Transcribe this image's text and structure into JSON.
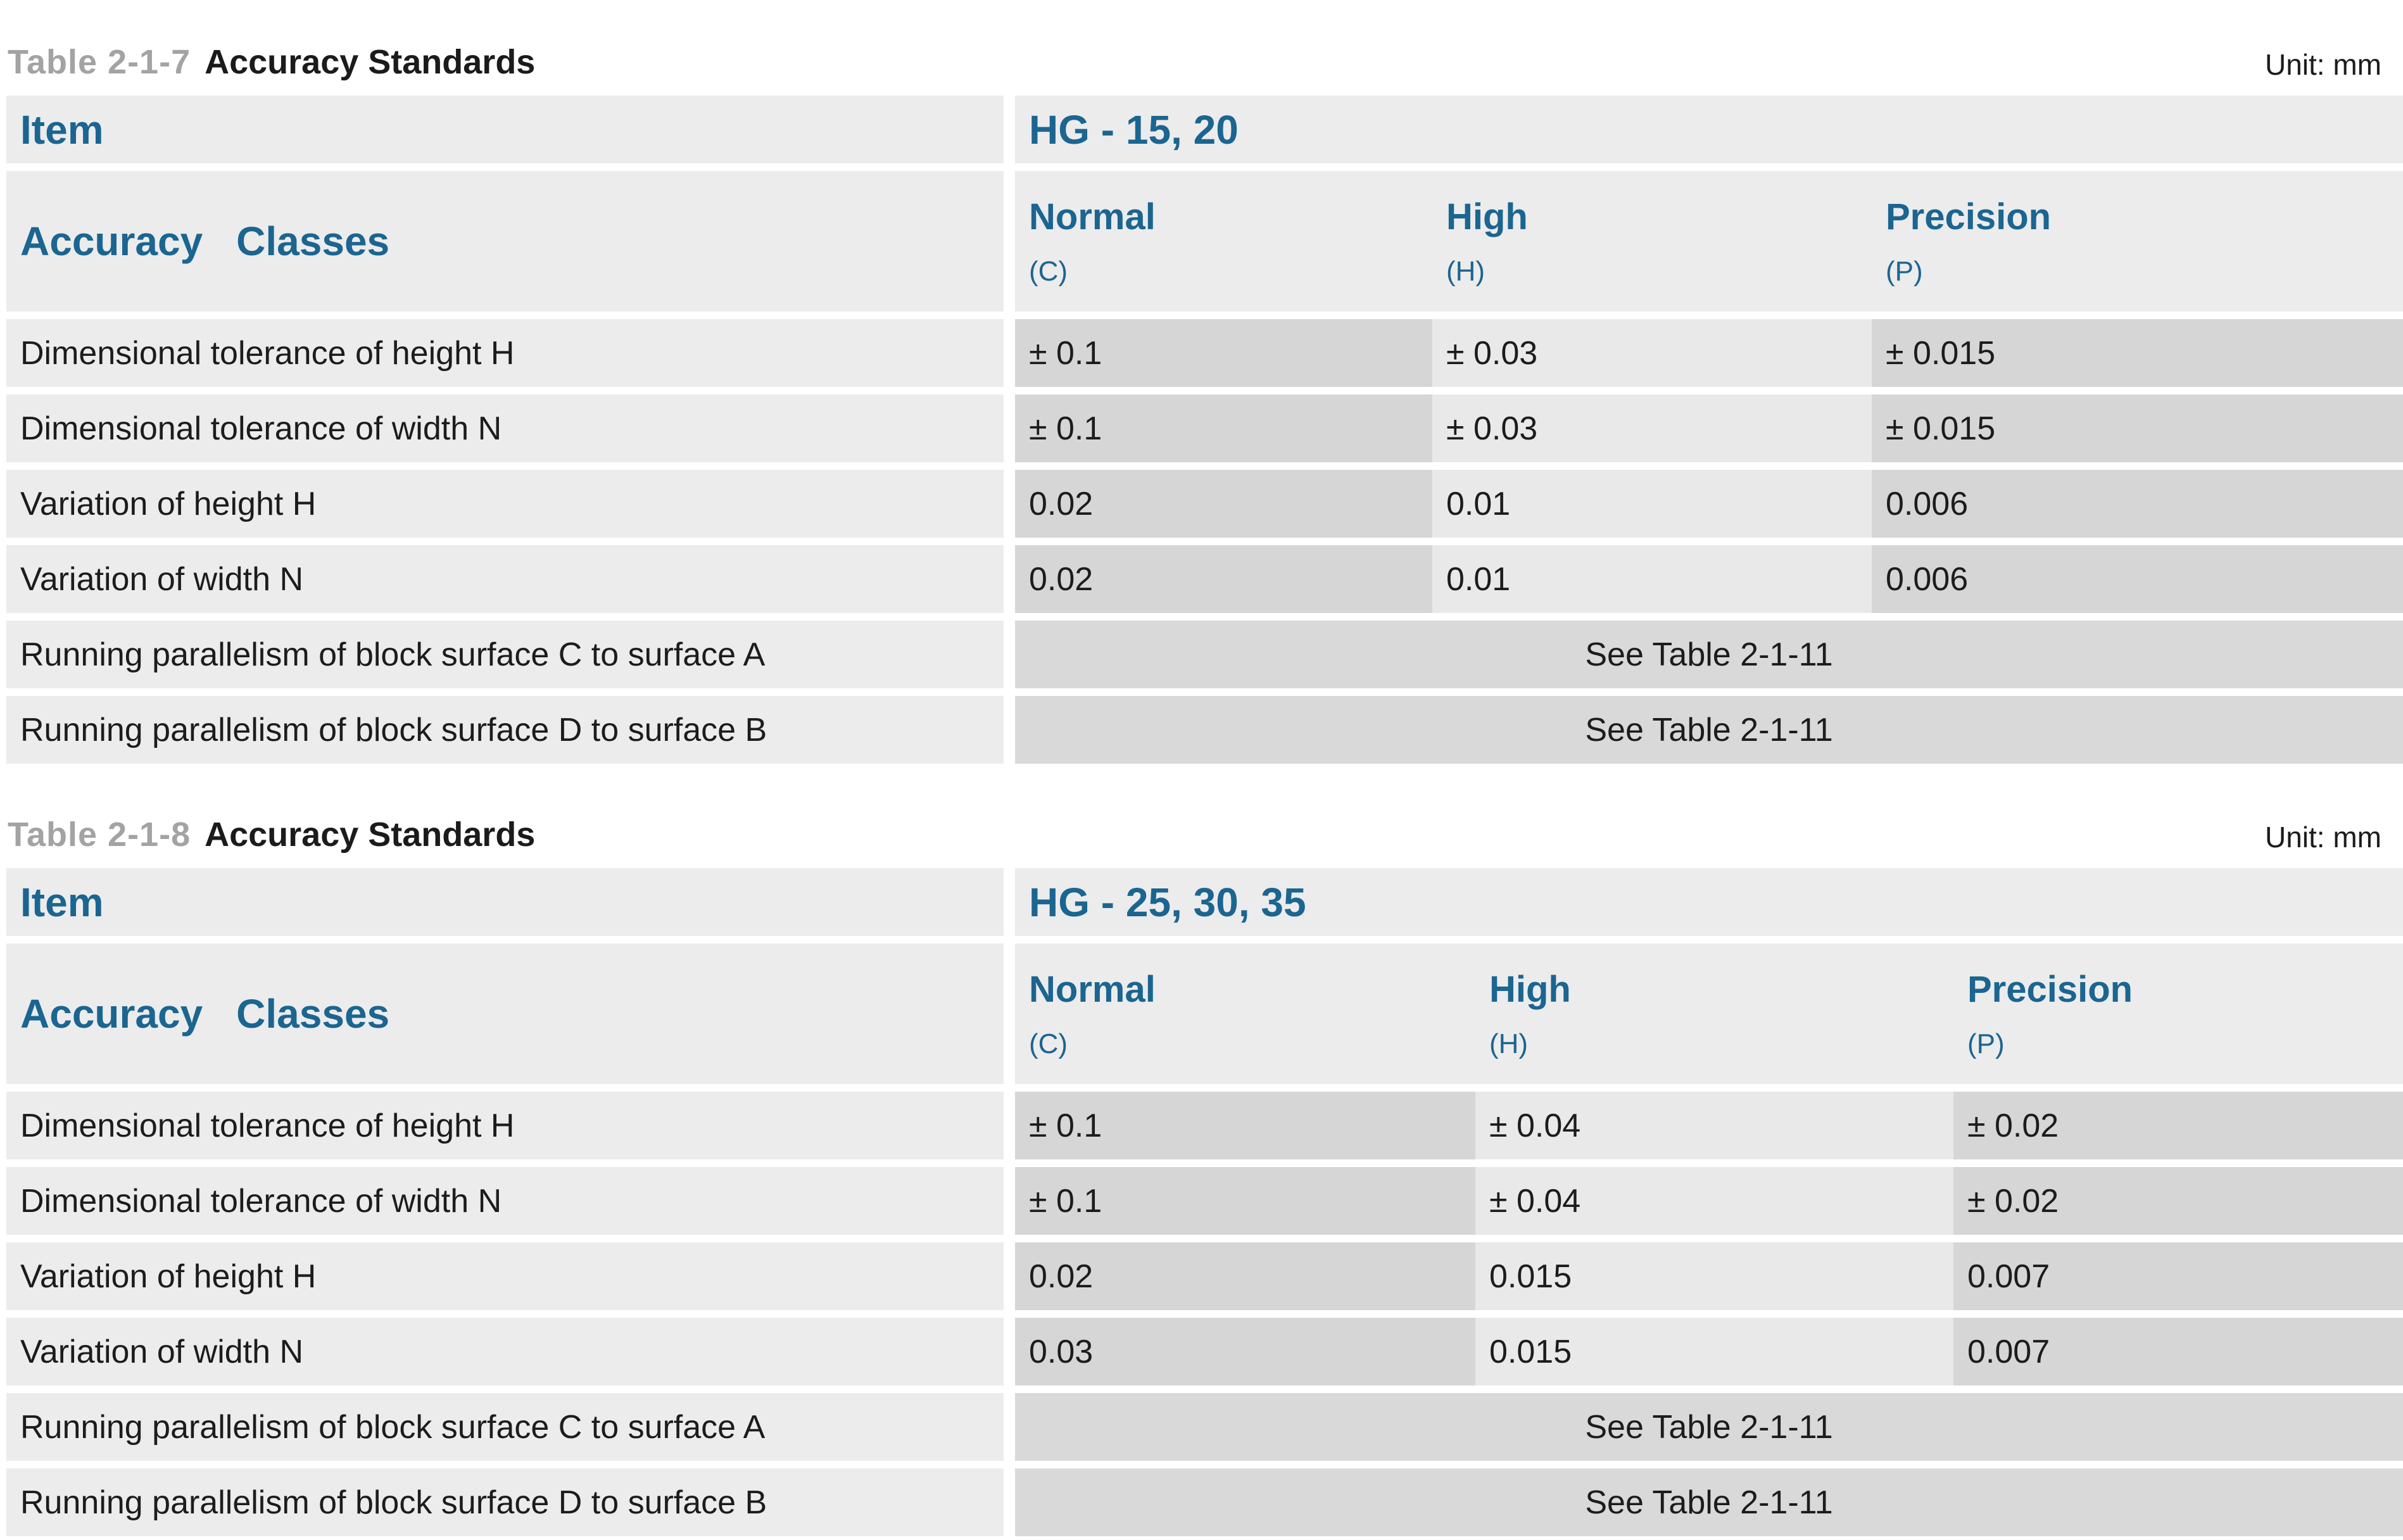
{
  "colors": {
    "accent_blue": "#1b6591",
    "table_number_gray": "#a3a3a3",
    "text_black": "#1c1c1c",
    "cell_light": "#ececec",
    "cell_mid": "#e9e9e9",
    "cell_dark": "#d6d6d6",
    "cell_merged": "#d9d9d9"
  },
  "tables": [
    {
      "table_label": "Table 2-1-7",
      "title": "Accuracy Standards",
      "unit": "Unit: mm",
      "item_header": "Item",
      "item_value": "HG - 15, 20",
      "classes_header": "Accuracy Classes",
      "class_columns": [
        {
          "name": "Normal",
          "code": "(C)"
        },
        {
          "name": "High",
          "code": "(H)"
        },
        {
          "name": "Precision",
          "code": "(P)"
        }
      ],
      "rows": [
        {
          "label": "Dimensional tolerance of height H",
          "values": [
            "± 0.1",
            "± 0.03",
            "± 0.015"
          ]
        },
        {
          "label": "Dimensional tolerance of width N",
          "values": [
            "± 0.1",
            "± 0.03",
            "± 0.015"
          ]
        },
        {
          "label": "Variation of height H",
          "values": [
            "0.02",
            "0.01",
            "0.006"
          ]
        },
        {
          "label": "Variation of width N",
          "values": [
            "0.02",
            "0.01",
            "0.006"
          ]
        }
      ],
      "merged_rows": [
        {
          "label": "Running parallelism of block surface C to surface A",
          "value": "See Table 2-1-11"
        },
        {
          "label": "Running parallelism of block surface D to surface B",
          "value": "See Table 2-1-11"
        }
      ]
    },
    {
      "table_label": "Table 2-1-8",
      "title": "Accuracy Standards",
      "unit": "Unit: mm",
      "item_header": "Item",
      "item_value": "HG - 25, 30, 35",
      "classes_header": "Accuracy Classes",
      "class_columns": [
        {
          "name": "Normal",
          "code": "(C)"
        },
        {
          "name": "High",
          "code": "(H)"
        },
        {
          "name": "Precision",
          "code": "(P)"
        }
      ],
      "rows": [
        {
          "label": "Dimensional tolerance of height H",
          "values": [
            "± 0.1",
            "± 0.04",
            "± 0.02"
          ]
        },
        {
          "label": "Dimensional tolerance of width N",
          "values": [
            "± 0.1",
            "± 0.04",
            "± 0.02"
          ]
        },
        {
          "label": "Variation of height H",
          "values": [
            "0.02",
            "0.015",
            "0.007"
          ]
        },
        {
          "label": "Variation of width N",
          "values": [
            "0.03",
            "0.015",
            "0.007"
          ]
        }
      ],
      "merged_rows": [
        {
          "label": "Running parallelism of block surface C to surface A",
          "value": "See Table 2-1-11"
        },
        {
          "label": "Running parallelism of block surface D to surface B",
          "value": "See Table 2-1-11"
        }
      ]
    }
  ]
}
